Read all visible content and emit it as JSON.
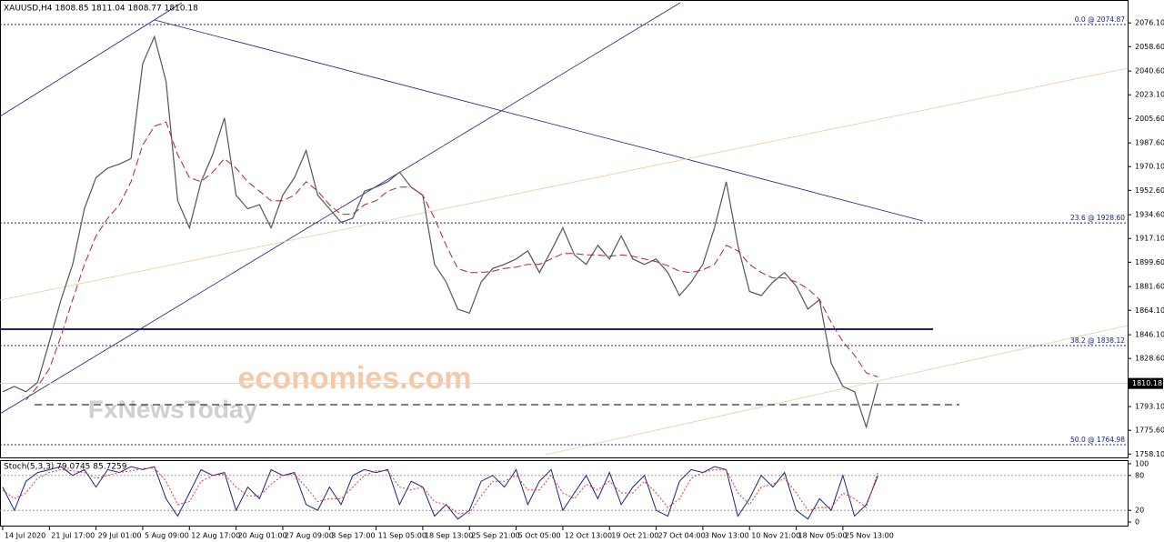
{
  "watermark": [
    "economies.com",
    "FxNewsToday"
  ],
  "chart_data": [
    {
      "type": "line",
      "title": "XAUUSD,H4  1808.85 1811.04 1808.77 1810.18",
      "xlim": [
        -0.23,
        96.4
      ],
      "xticks": [
        {
          "value": 0,
          "label": "14 Jul 2020"
        },
        {
          "value": 4,
          "label": "21 Jul 17:00"
        },
        {
          "value": 8,
          "label": "29 Jul 01:00"
        },
        {
          "value": 12,
          "label": "5 Aug 09:00"
        },
        {
          "value": 16,
          "label": "12 Aug 17:00"
        },
        {
          "value": 20,
          "label": "20 Aug 01:00"
        },
        {
          "value": 24,
          "label": "27 Aug 09:00"
        },
        {
          "value": 28,
          "label": "3 Sep 17:00"
        },
        {
          "value": 32,
          "label": "11 Sep 05:00"
        },
        {
          "value": 36,
          "label": "18 Sep 13:00"
        },
        {
          "value": 40,
          "label": "25 Sep 21:00"
        },
        {
          "value": 44,
          "label": "5 Oct 05:00"
        },
        {
          "value": 48,
          "label": "12 Oct 13:00"
        },
        {
          "value": 52,
          "label": "19 Oct 21:00"
        },
        {
          "value": 56,
          "label": "27 Oct 04:00"
        },
        {
          "value": 60,
          "label": "3 Nov 13:00"
        },
        {
          "value": 64,
          "label": "10 Nov 21:00"
        },
        {
          "value": 68,
          "label": "18 Nov 05:00"
        },
        {
          "value": 72,
          "label": "25 Nov 13:00"
        }
      ],
      "ylim": [
        1755.6,
        2091.0
      ],
      "yticks": [
        {
          "value": 2076.1,
          "label": "2076.10"
        },
        {
          "value": 2058.6,
          "label": "2058.60"
        },
        {
          "value": 2040.6,
          "label": "2040.60"
        },
        {
          "value": 2023.1,
          "label": "2023.10"
        },
        {
          "value": 2005.6,
          "label": "2005.60"
        },
        {
          "value": 1987.6,
          "label": "1987.60"
        },
        {
          "value": 1970.1,
          "label": "1970.10"
        },
        {
          "value": 1952.6,
          "label": "1952.60"
        },
        {
          "value": 1934.6,
          "label": "1934.60"
        },
        {
          "value": 1917.1,
          "label": "1917.10"
        },
        {
          "value": 1899.6,
          "label": "1899.60"
        },
        {
          "value": 1881.6,
          "label": "1881.60"
        },
        {
          "value": 1864.1,
          "label": "1864.10"
        },
        {
          "value": 1846.1,
          "label": "1846.10"
        },
        {
          "value": 1828.6,
          "label": "1828.60"
        },
        {
          "value": 1793.1,
          "label": "1793.10"
        },
        {
          "value": 1775.6,
          "label": "1775.60"
        },
        {
          "value": 1758.1,
          "label": "1758.10"
        }
      ],
      "last_price": {
        "value": 1810.18,
        "label": "1810.18"
      },
      "fibo": [
        {
          "value": 2074.87,
          "label": "0.0 @ 2074.87"
        },
        {
          "value": 1928.6,
          "label": "23.6 @ 1928.60"
        },
        {
          "value": 1838.12,
          "label": "38.2 @ 1838.12"
        },
        {
          "value": 1764.98,
          "label": "50.0 @ 1764.98"
        }
      ],
      "series": [
        {
          "color": "#555555",
          "values": [
            1804,
            1808,
            1804,
            1811,
            1841,
            1872,
            1898,
            1939,
            1962,
            1969,
            1972,
            1976,
            2046,
            2066,
            2033,
            1945,
            1925,
            1959,
            1979,
            2006,
            1949,
            1939,
            1942,
            1925,
            1949,
            1962,
            1982,
            1949,
            1939,
            1929,
            1932,
            1952,
            1955,
            1959,
            1966,
            1955,
            1949,
            1898,
            1885,
            1865,
            1862,
            1885,
            1895,
            1898,
            1902,
            1908,
            1892,
            1908,
            1925,
            1905,
            1898,
            1912,
            1902,
            1919,
            1902,
            1898,
            1902,
            1892,
            1875,
            1885,
            1898,
            1925,
            1959,
            1912,
            1878,
            1875,
            1885,
            1892,
            1882,
            1865,
            1872,
            1825,
            1808,
            1804,
            1778,
            1810.18
          ]
        },
        {
          "color": "#b22222",
          "dashed": true,
          "values": [
            null,
            null,
            1798,
            1808,
            1821,
            1845,
            1872,
            1898,
            1919,
            1932,
            1942,
            1959,
            1986,
            2000,
            2003,
            1979,
            1962,
            1959,
            1966,
            1976,
            1969,
            1959,
            1952,
            1945,
            1945,
            1949,
            1959,
            1952,
            1942,
            1935,
            1935,
            1942,
            1945,
            1952,
            1955,
            1955,
            1949,
            1932,
            1912,
            1895,
            1892,
            1892,
            1893,
            1895,
            1896,
            1898,
            1898,
            1902,
            1906,
            1906,
            1905,
            1905,
            1904,
            1905,
            1904,
            1902,
            1900,
            1897,
            1893,
            1892,
            1894,
            1898,
            1912,
            1908,
            1898,
            1892,
            1888,
            1888,
            1885,
            1880,
            1872,
            1855,
            1841,
            1831,
            1818,
            1815
          ]
        }
      ]
    },
    {
      "type": "line",
      "title": "Stoch(5,3,3) 79.0745 85.7259",
      "ylim": [
        0,
        100
      ],
      "yticks": [
        100,
        80,
        20,
        0
      ],
      "series": [
        {
          "color": "#1a237e",
          "values": [
            60,
            20,
            70,
            85,
            90,
            95,
            80,
            90,
            60,
            90,
            85,
            95,
            90,
            95,
            40,
            10,
            50,
            90,
            80,
            85,
            20,
            60,
            40,
            90,
            80,
            85,
            30,
            20,
            60,
            30,
            80,
            90,
            85,
            90,
            30,
            70,
            60,
            10,
            30,
            5,
            20,
            70,
            80,
            60,
            90,
            30,
            70,
            90,
            20,
            50,
            80,
            40,
            85,
            30,
            60,
            80,
            20,
            10,
            70,
            90,
            85,
            95,
            90,
            10,
            40,
            80,
            60,
            85,
            20,
            5,
            40,
            20,
            80,
            10,
            30,
            79
          ]
        },
        {
          "color": "#e53935",
          "dashed": true,
          "values": [
            55,
            40,
            50,
            75,
            85,
            90,
            88,
            85,
            75,
            80,
            85,
            88,
            92,
            93,
            70,
            30,
            35,
            70,
            80,
            82,
            60,
            45,
            45,
            65,
            80,
            82,
            60,
            35,
            40,
            40,
            60,
            80,
            88,
            88,
            60,
            55,
            60,
            35,
            30,
            15,
            15,
            45,
            70,
            70,
            80,
            55,
            55,
            80,
            50,
            40,
            65,
            55,
            70,
            50,
            50,
            70,
            50,
            25,
            40,
            75,
            85,
            90,
            90,
            50,
            30,
            60,
            65,
            75,
            50,
            20,
            25,
            25,
            50,
            40,
            25,
            86
          ]
        }
      ]
    }
  ]
}
